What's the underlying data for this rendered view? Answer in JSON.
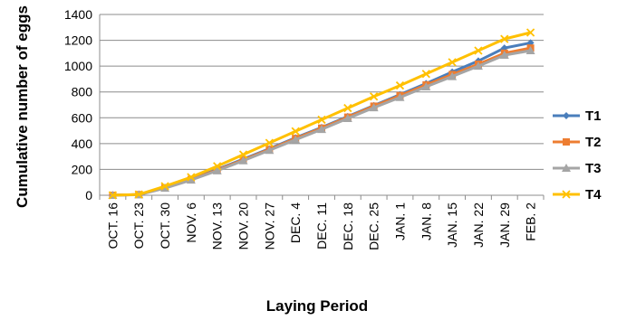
{
  "chart_data": {
    "type": "line",
    "xlabel": "Laying Period",
    "ylabel": "Cumulative number of eggs",
    "ylim": [
      0,
      1400
    ],
    "ytick_step": 200,
    "grid": true,
    "legend_position": "right",
    "categories": [
      "OCT. 16",
      "OCT. 23",
      "OCT. 30",
      "NOV. 6",
      "NOV. 13",
      "NOV. 20",
      "NOV. 27",
      "DEC. 4",
      "DEC. 11",
      "DEC. 18",
      "DEC. 25",
      "JAN. 1",
      "JAN. 8",
      "JAN. 15",
      "JAN. 22",
      "JAN. 29",
      "FEB. 2"
    ],
    "series": [
      {
        "name": "T1",
        "color": "#4a7ebb",
        "marker": "diamond",
        "values": [
          0,
          5,
          60,
          125,
          200,
          280,
          360,
          445,
          525,
          610,
          695,
          780,
          865,
          955,
          1040,
          1140,
          1180
        ]
      },
      {
        "name": "T2",
        "color": "#ed7d31",
        "marker": "square",
        "values": [
          0,
          5,
          58,
          122,
          195,
          275,
          355,
          440,
          520,
          605,
          690,
          772,
          855,
          935,
          1015,
          1100,
          1140
        ]
      },
      {
        "name": "T3",
        "color": "#a5a5a5",
        "marker": "triangle",
        "values": [
          0,
          4,
          55,
          118,
          190,
          268,
          348,
          430,
          510,
          595,
          678,
          758,
          840,
          920,
          1000,
          1085,
          1120
        ]
      },
      {
        "name": "T4",
        "color": "#ffc000",
        "marker": "x",
        "values": [
          0,
          6,
          70,
          140,
          225,
          315,
          405,
          495,
          585,
          675,
          765,
          850,
          940,
          1030,
          1120,
          1210,
          1260
        ]
      }
    ]
  }
}
